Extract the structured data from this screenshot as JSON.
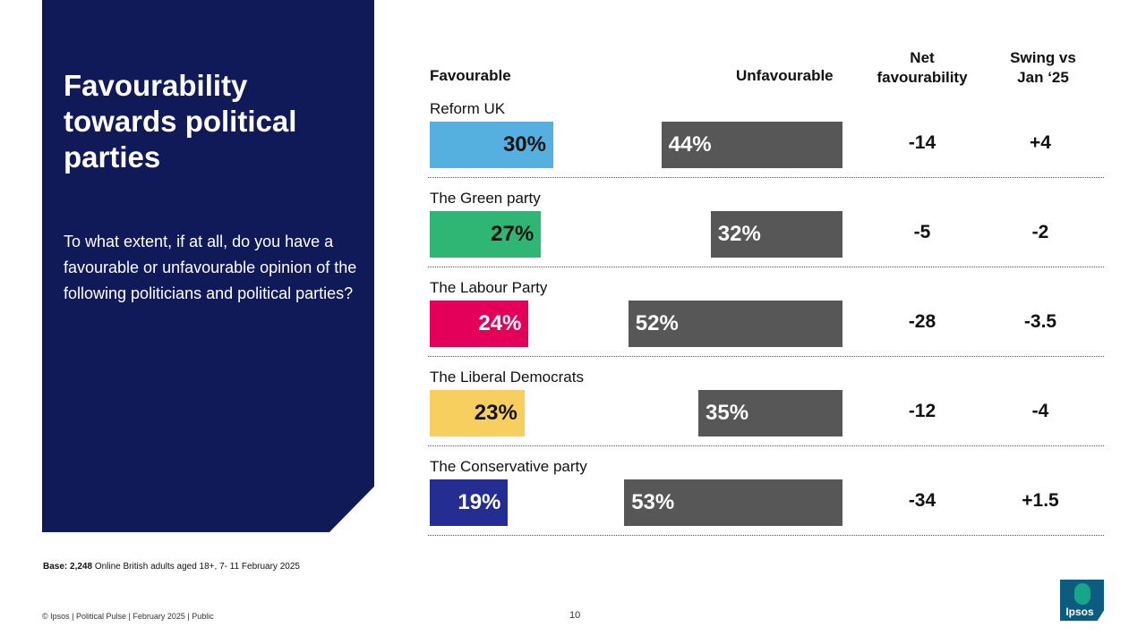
{
  "panel": {
    "title": "Favourability towards political parties",
    "question": "To what extent, if at all, do you have a favourable or unfavourable opinion of the following politicians and political parties?"
  },
  "headers": {
    "favourable": "Favourable",
    "unfavourable": "Unfavourable",
    "net": "Net favourability",
    "swing": "Swing vs Jan ‘25"
  },
  "chart_data": {
    "type": "bar",
    "categories": [
      "Reform UK",
      "The Green party",
      "The Labour Party",
      "The Liberal Democrats",
      "The Conservative party"
    ],
    "series": [
      {
        "name": "Favourable",
        "values": [
          30,
          27,
          24,
          23,
          19
        ],
        "colors": [
          "#55b0e0",
          "#2fb574",
          "#e4005a",
          "#f6cf5e",
          "#232d92"
        ],
        "labels": [
          "30%",
          "27%",
          "24%",
          "23%",
          "19%"
        ]
      },
      {
        "name": "Unfavourable",
        "values": [
          44,
          32,
          52,
          35,
          53
        ],
        "color": "#575757",
        "labels": [
          "44%",
          "32%",
          "52%",
          "35%",
          "53%"
        ]
      }
    ],
    "net_favourability": [
      "-14",
      "-5",
      "-28",
      "-12",
      "-34"
    ],
    "swing_vs_jan_25": [
      "+4",
      "-2",
      "-3.5",
      "-4",
      "+1.5"
    ],
    "legend": "none"
  },
  "footer": {
    "base_bold": "Base: 2,248",
    "base_text": " Online British adults aged 18+,  7- 11 February 2025",
    "copyright": "© Ipsos | Political Pulse | February 2025 | Public",
    "page_number": "10",
    "logo_text": "Ipsos"
  }
}
